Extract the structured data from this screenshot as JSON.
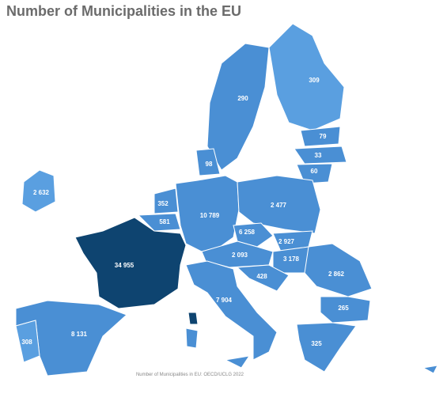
{
  "title": "Number of Municipalities in the EU",
  "regions": [
    {
      "label": "309"
    },
    {
      "label": "290"
    },
    {
      "label": "79"
    },
    {
      "label": "33"
    },
    {
      "label": "60"
    },
    {
      "label": "98"
    },
    {
      "label": "2 632"
    },
    {
      "label": "352"
    },
    {
      "label": "581"
    },
    {
      "label": "10 789"
    },
    {
      "label": "2 477"
    },
    {
      "label": "6 258"
    },
    {
      "label": "2 927"
    },
    {
      "label": "2 093"
    },
    {
      "label": "3 178"
    },
    {
      "label": "428"
    },
    {
      "label": "34 955"
    },
    {
      "label": "2 862"
    },
    {
      "label": "7 904"
    },
    {
      "label": "265"
    },
    {
      "label": "308"
    },
    {
      "label": "8 131"
    },
    {
      "label": "325"
    }
  ],
  "source": "Number of Municipalities in EU: OECD/UCLG 2022"
}
